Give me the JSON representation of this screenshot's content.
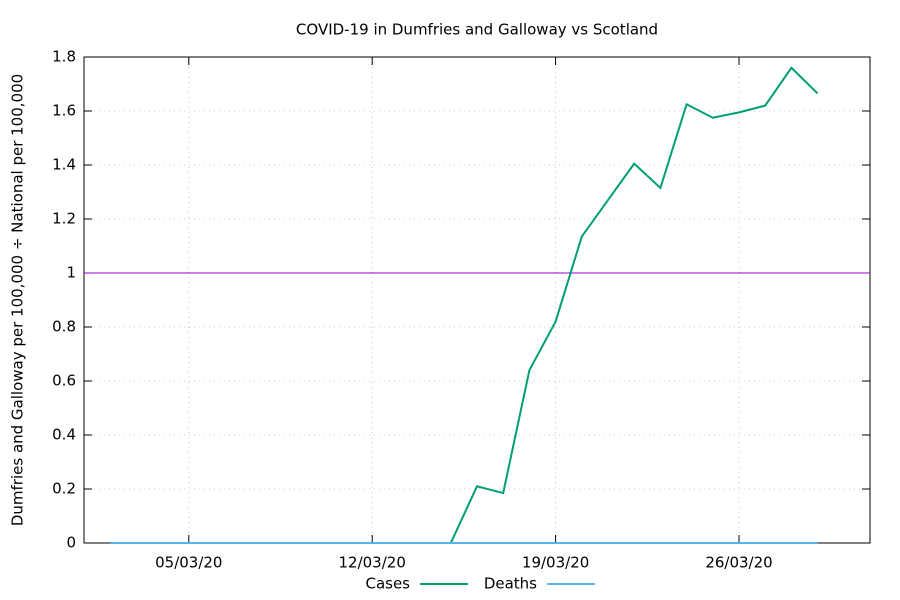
{
  "chart_data": {
    "type": "line",
    "title": "COVID-19 in Dumfries and Galloway vs Scotland",
    "y_label": "Dumfries and Galloway per 100,000 ÷ National per 100,000",
    "x": [
      "2020-03-02",
      "2020-03-03",
      "2020-03-04",
      "2020-03-05",
      "2020-03-06",
      "2020-03-07",
      "2020-03-08",
      "2020-03-09",
      "2020-03-10",
      "2020-03-11",
      "2020-03-12",
      "2020-03-13",
      "2020-03-14",
      "2020-03-15",
      "2020-03-16",
      "2020-03-17",
      "2020-03-18",
      "2020-03-19",
      "2020-03-20",
      "2020-03-21",
      "2020-03-22",
      "2020-03-23",
      "2020-03-24",
      "2020-03-25",
      "2020-03-26",
      "2020-03-27",
      "2020-03-28",
      "2020-03-29"
    ],
    "series": [
      {
        "name": "Cases",
        "color": "#009e73",
        "values": [
          0,
          0,
          0,
          0,
          0,
          0,
          0,
          0,
          0,
          0,
          0,
          0,
          0,
          0,
          0.21,
          0.185,
          0.64,
          0.82,
          1.135,
          1.27,
          1.405,
          1.315,
          1.625,
          1.575,
          1.595,
          1.62,
          1.76,
          1.665
        ]
      },
      {
        "name": "Deaths",
        "color": "#56b4e9",
        "values": [
          0,
          0,
          0,
          0,
          0,
          0,
          0,
          0,
          0,
          0,
          0,
          0,
          0,
          0,
          0,
          0,
          0,
          0,
          0,
          0,
          0,
          0,
          0,
          0,
          0,
          0,
          0,
          0
        ]
      }
    ],
    "reference_line": {
      "value": 1,
      "color": "#9400d3"
    },
    "xlim": [
      "2020-03-01",
      "2020-03-31"
    ],
    "xticks": [
      {
        "value": "2020-03-05",
        "label": "05/03/20"
      },
      {
        "value": "2020-03-12",
        "label": "12/03/20"
      },
      {
        "value": "2020-03-19",
        "label": "19/03/20"
      },
      {
        "value": "2020-03-26",
        "label": "26/03/20"
      }
    ],
    "ylim": [
      0,
      1.8
    ],
    "yticks": [
      0,
      0.2,
      0.4,
      0.6,
      0.8,
      1,
      1.2,
      1.4,
      1.6,
      1.8
    ],
    "grid": true,
    "legend": "bottom"
  }
}
